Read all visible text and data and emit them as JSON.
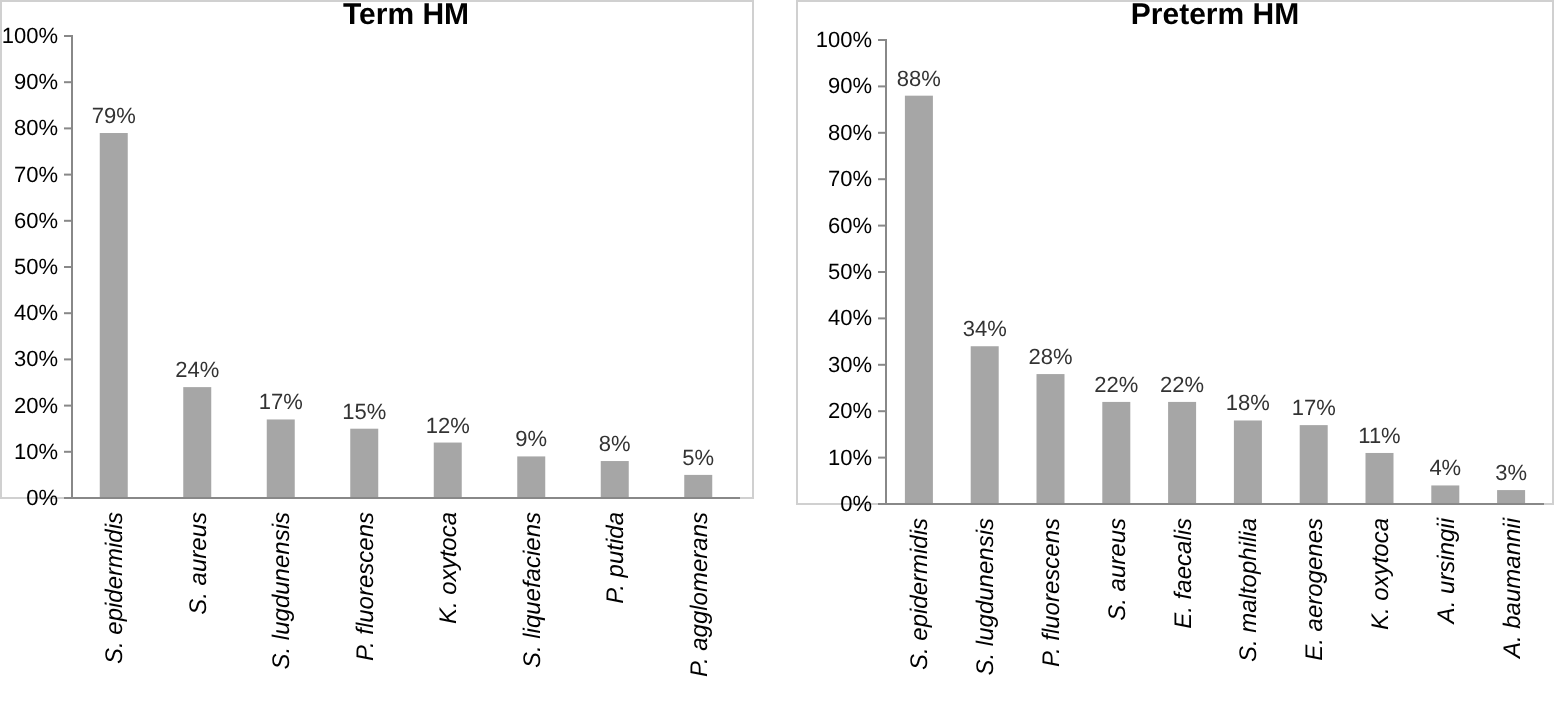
{
  "chart_data": [
    {
      "type": "bar",
      "title": "Term HM",
      "categories": [
        "S. epidermidis",
        "S. aureus",
        "S. lugdunensis",
        "P. fluorescens",
        "K. oxytoca",
        "S. liquefaciens",
        "P. putida",
        "P. agglomerans"
      ],
      "values": [
        79,
        24,
        17,
        15,
        12,
        9,
        8,
        5
      ],
      "value_labels": [
        "79%",
        "24%",
        "17%",
        "15%",
        "12%",
        "9%",
        "8%",
        "5%"
      ],
      "color": "#a6a6a6",
      "ylim": [
        0,
        100
      ],
      "yticks": [
        {
          "value": 0,
          "label": "0%"
        },
        {
          "value": 10,
          "label": "10%"
        },
        {
          "value": 20,
          "label": "20%"
        },
        {
          "value": 30,
          "label": "30%"
        },
        {
          "value": 40,
          "label": "40%"
        },
        {
          "value": 50,
          "label": "50%"
        },
        {
          "value": 60,
          "label": "60%"
        },
        {
          "value": 70,
          "label": "70%"
        },
        {
          "value": 80,
          "label": "80%"
        },
        {
          "value": 90,
          "label": "90%"
        },
        {
          "value": 100,
          "label": "100%"
        }
      ],
      "grid": false
    },
    {
      "type": "bar",
      "title": "Preterm HM",
      "categories": [
        "S. epidermidis",
        "S. lugdunensis",
        "P. fluorescens",
        "S. aureus",
        "E. faecalis",
        "S. maltophilia",
        "E. aerogenes",
        "K. oxytoca",
        "A. ursingii",
        "A. baumannii"
      ],
      "values": [
        88,
        34,
        28,
        22,
        22,
        18,
        17,
        11,
        4,
        3
      ],
      "value_labels": [
        "88%",
        "34%",
        "28%",
        "22%",
        "22%",
        "18%",
        "17%",
        "11%",
        "4%",
        "3%"
      ],
      "color": "#a6a6a6",
      "ylim": [
        0,
        100
      ],
      "yticks": [
        {
          "value": 0,
          "label": "0%"
        },
        {
          "value": 10,
          "label": "10%"
        },
        {
          "value": 20,
          "label": "20%"
        },
        {
          "value": 30,
          "label": "30%"
        },
        {
          "value": 40,
          "label": "40%"
        },
        {
          "value": 50,
          "label": "50%"
        },
        {
          "value": 60,
          "label": "60%"
        },
        {
          "value": 70,
          "label": "70%"
        },
        {
          "value": 80,
          "label": "80%"
        },
        {
          "value": 90,
          "label": "90%"
        },
        {
          "value": 100,
          "label": "100%"
        }
      ],
      "grid": false
    }
  ]
}
